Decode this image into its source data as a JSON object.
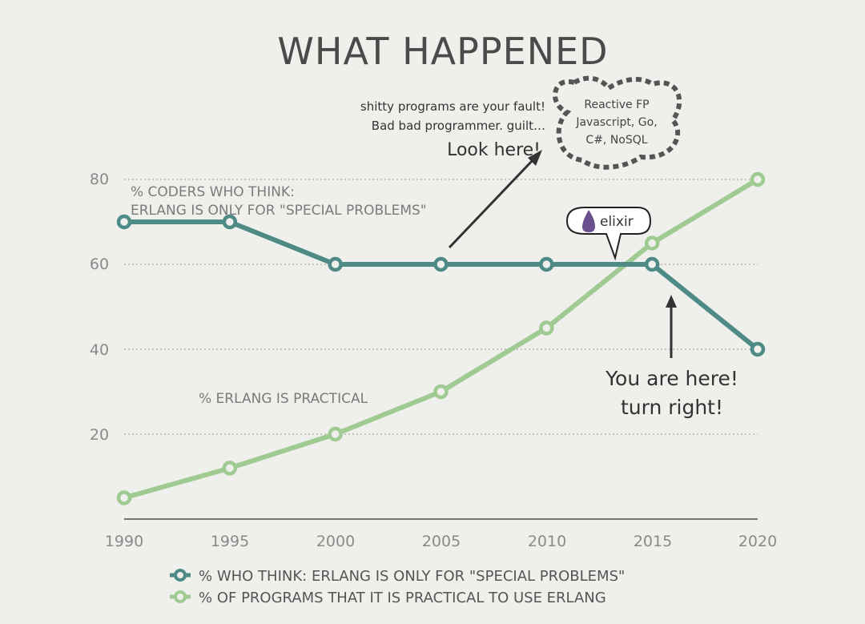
{
  "chart_data": {
    "type": "line",
    "title": "WHAT HAPPENED",
    "x": [
      1990,
      1995,
      2000,
      2005,
      2010,
      2015,
      2020
    ],
    "xticks": [
      "1990",
      "1995",
      "2000",
      "2005",
      "2010",
      "2015",
      "2020"
    ],
    "yticks": [
      "20",
      "40",
      "60",
      "80"
    ],
    "ylim": [
      0,
      80
    ],
    "grid": "dotted horizontal",
    "legend_placement": "bottom",
    "series": [
      {
        "name": "%  WHO THINK: ERLANG IS ONLY FOR \"SPECIAL PROBLEMS\"",
        "color": "#4e8b87",
        "values": [
          70,
          70,
          60,
          60,
          60,
          60,
          40
        ]
      },
      {
        "name": "% OF PROGRAMS THAT IT IS PRACTICAL TO USE ERLANG",
        "color": "#9fcb93",
        "values": [
          5,
          12,
          20,
          30,
          45,
          65,
          80
        ]
      }
    ],
    "annotations": {
      "series1_label_line1": "%  CODERS WHO THINK:",
      "series1_label_line2": "ERLANG IS ONLY FOR \"SPECIAL PROBLEMS\"",
      "series2_label": "% ERLANG IS PRACTICAL",
      "fault_line1": "shitty programs are your fault!",
      "fault_line2": "Bad bad programmer. guilt…",
      "look_here": "Look here!",
      "cloud_line1": "Reactive FP",
      "cloud_line2": "Javascript, Go,",
      "cloud_line3": "C#, NoSQL",
      "bubble": "elixir",
      "you_are_here_line1": "You are here!",
      "you_are_here_line2": "turn right!"
    }
  }
}
